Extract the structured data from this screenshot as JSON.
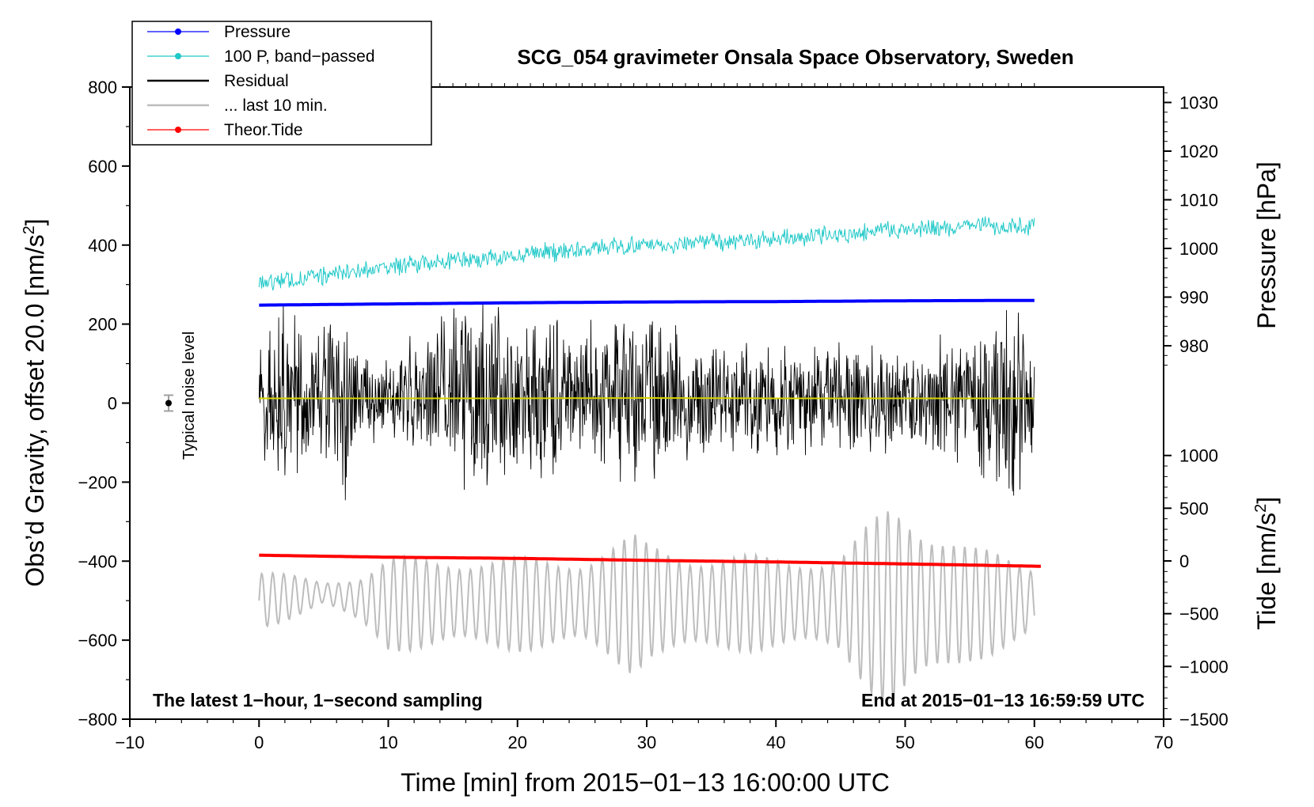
{
  "chart_data": {
    "type": "line",
    "title": "SCG_054 gravimeter Onsala Space Observatory, Sweden",
    "xlabel": "Time [min] from 2015−01−13 16:00:00 UTC",
    "ylabel_left_main": "Obs’d Gravity, offset 20.0 [nm/s",
    "ylabel_left_sup": "2",
    "ylabel_left_end": "]",
    "ylabel_right_pressure": "Pressure [hPa]",
    "ylabel_right_tide_main": "Tide [nm/s",
    "ylabel_right_tide_sup": "2",
    "ylabel_right_tide_end": "]",
    "xlim": [
      -10,
      70
    ],
    "ylim_left": [
      -800,
      800
    ],
    "x_ticks": [
      -10,
      0,
      10,
      20,
      30,
      40,
      50,
      60,
      70
    ],
    "x_tick_labels": [
      "−10",
      "0",
      "10",
      "20",
      "30",
      "40",
      "50",
      "60",
      "70"
    ],
    "y_left_ticks": [
      800,
      600,
      400,
      200,
      0,
      -200,
      -400,
      -600,
      -800
    ],
    "y_left_tick_labels": [
      "800",
      "600",
      "400",
      "200",
      "0",
      "−200",
      "−400",
      "−600",
      "−800"
    ],
    "pressure_ticks": [
      1030,
      1020,
      1010,
      1000,
      990,
      980
    ],
    "pressure_tick_labels": [
      "1030",
      "1020",
      "1010",
      "1000",
      "990",
      "980"
    ],
    "tide_ticks": [
      1000,
      500,
      0,
      -500,
      -1000,
      -1500
    ],
    "tide_tick_labels": [
      "1000",
      "500",
      "0",
      "−500",
      "−1000",
      "−1500"
    ],
    "legend": [
      {
        "label": "Pressure",
        "color": "#0000ff",
        "marker": true
      },
      {
        "label": "100 P, band−passed",
        "color": "#20c8c8",
        "marker": true
      },
      {
        "label": "Residual",
        "color": "#000000",
        "marker": false
      },
      {
        "label": "... last 10 min.",
        "color": "#bdbdbd",
        "marker": false
      },
      {
        "label": "Theor.Tide",
        "color": "#ff0000",
        "marker": true
      }
    ],
    "annotations": {
      "noise_label": "Typical noise level",
      "bottom_left": "The latest 1−hour, 1−second sampling",
      "bottom_right": "End at 2015−01−13 16:59:59 UTC"
    },
    "noise_bar": {
      "x": -7,
      "y": 0,
      "err": 20
    },
    "series": [
      {
        "name": "Pressure",
        "color": "#0000ff",
        "x": [
          0,
          10,
          20,
          30,
          40,
          50,
          60
        ],
        "values": [
          248,
          251,
          254,
          256,
          257,
          259,
          260
        ]
      },
      {
        "name": "100 P, band−passed",
        "color": "#20c8c8",
        "x": [
          0,
          10,
          20,
          30,
          40,
          50,
          60
        ],
        "values": [
          305,
          345,
          375,
          400,
          415,
          440,
          450
        ]
      },
      {
        "name": "Residual (yellow smooth)",
        "color": "#d4d400",
        "x": [
          0,
          10,
          20,
          30,
          40,
          50,
          60
        ],
        "values": [
          12,
          12,
          12,
          13,
          12,
          12,
          12
        ]
      },
      {
        "name": "Theor.Tide",
        "color": "#ff0000",
        "x": [
          0,
          10,
          20,
          30,
          40,
          50,
          60.5
        ],
        "values": [
          -385,
          -390,
          -393,
          -398,
          -402,
          -407,
          -413
        ]
      }
    ],
    "residual_envelope": {
      "x": [
        0,
        2,
        4,
        6.5,
        8,
        10,
        15,
        20,
        25,
        30,
        35,
        40,
        45,
        50,
        55,
        58.3,
        60
      ],
      "amplitude": [
        150,
        300,
        180,
        330,
        120,
        110,
        280,
        260,
        200,
        280,
        150,
        160,
        170,
        150,
        190,
        300,
        160
      ]
    },
    "last_10_min": {
      "x": [
        0,
        5,
        8,
        10,
        15,
        20,
        25,
        29,
        30,
        35,
        40,
        45,
        49,
        50,
        55,
        60
      ],
      "center": [
        -500,
        -480,
        -500,
        -510,
        -505,
        -510,
        -505,
        -510,
        -500,
        -510,
        -505,
        -510,
        -520,
        -510,
        -510,
        -500
      ],
      "amplitude": [
        80,
        30,
        70,
        120,
        120,
        120,
        120,
        180,
        150,
        130,
        120,
        130,
        280,
        260,
        150,
        100
      ]
    }
  }
}
